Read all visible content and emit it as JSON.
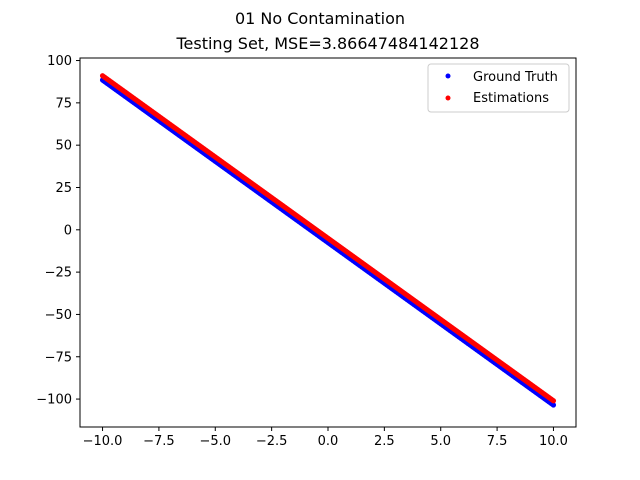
{
  "chart_data": {
    "type": "scatter",
    "title": "01 No Contamination",
    "subtitle": "Testing Set, MSE=3.86647484142128",
    "xlabel": "",
    "ylabel": "",
    "xlim": [
      -11.0,
      11.0
    ],
    "ylim": [
      -116.5,
      101.5
    ],
    "xticks": [
      -10.0,
      -7.5,
      -5.0,
      -2.5,
      0.0,
      2.5,
      5.0,
      7.5,
      10.0
    ],
    "xtick_labels": [
      "−10.0",
      "−7.5",
      "−5.0",
      "−2.5",
      "0.0",
      "2.5",
      "5.0",
      "7.5",
      "10.0"
    ],
    "yticks": [
      -100,
      -75,
      -50,
      -25,
      0,
      25,
      50,
      75,
      100
    ],
    "ytick_labels": [
      "−100",
      "−75",
      "−50",
      "−25",
      "0",
      "25",
      "50",
      "75",
      "100"
    ],
    "grid": false,
    "legend_position": "top-right",
    "series": [
      {
        "name": "Ground Truth",
        "color": "#0000ff",
        "x": [
          -10.0,
          -9.5,
          -9.0,
          -8.5,
          -8.0,
          -7.5,
          -7.0,
          -6.5,
          -6.0,
          -5.5,
          -5.0,
          -4.5,
          -4.0,
          -3.5,
          -3.0,
          -2.5,
          -2.0,
          -1.5,
          -1.0,
          -0.5,
          0.0,
          0.5,
          1.0,
          1.5,
          2.0,
          2.5,
          3.0,
          3.5,
          4.0,
          4.5,
          5.0,
          5.5,
          6.0,
          6.5,
          7.0,
          7.5,
          8.0,
          8.5,
          9.0,
          9.5,
          10.0
        ],
        "y": [
          88.5,
          83.7,
          78.9,
          74.1,
          69.3,
          64.5,
          59.7,
          54.9,
          50.1,
          45.3,
          40.5,
          35.7,
          30.9,
          26.1,
          21.3,
          16.5,
          11.7,
          6.9,
          2.1,
          -2.7,
          -7.5,
          -12.3,
          -17.1,
          -21.9,
          -26.7,
          -31.5,
          -36.3,
          -41.1,
          -45.9,
          -50.7,
          -55.5,
          -60.3,
          -65.1,
          -69.9,
          -74.7,
          -79.5,
          -84.3,
          -89.1,
          -93.9,
          -98.7,
          -103.5
        ]
      },
      {
        "name": "Estimations",
        "color": "#ff0000",
        "x": [
          -10.0,
          -9.5,
          -9.0,
          -8.5,
          -8.0,
          -7.5,
          -7.0,
          -6.5,
          -6.0,
          -5.5,
          -5.0,
          -4.5,
          -4.0,
          -3.5,
          -3.0,
          -2.5,
          -2.0,
          -1.5,
          -1.0,
          -0.5,
          0.0,
          0.5,
          1.0,
          1.5,
          2.0,
          2.5,
          3.0,
          3.5,
          4.0,
          4.5,
          5.0,
          5.5,
          6.0,
          6.5,
          7.0,
          7.5,
          8.0,
          8.5,
          9.0,
          9.5,
          10.0
        ],
        "y": [
          91.0,
          86.2,
          81.4,
          76.6,
          71.8,
          67.0,
          62.2,
          57.4,
          52.6,
          47.8,
          43.0,
          38.2,
          33.4,
          28.6,
          23.8,
          19.0,
          14.2,
          9.4,
          4.6,
          -0.2,
          -5.0,
          -9.8,
          -14.6,
          -19.4,
          -24.2,
          -29.0,
          -33.8,
          -38.6,
          -43.4,
          -48.2,
          -53.0,
          -57.8,
          -62.6,
          -67.4,
          -72.2,
          -77.0,
          -81.8,
          -86.6,
          -91.4,
          -96.2,
          -101.0
        ]
      }
    ]
  }
}
